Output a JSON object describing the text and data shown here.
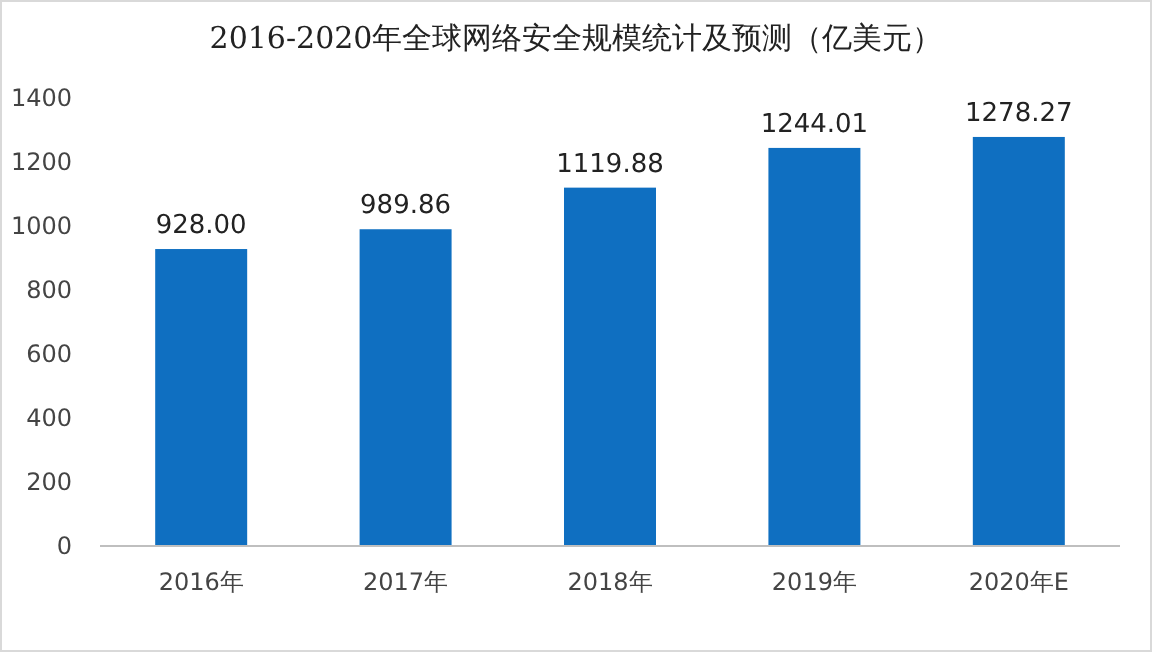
{
  "chart_data": {
    "type": "bar",
    "title": "2016-2020年全球网络安全规模统计及预测（亿美元）",
    "categories": [
      "2016年",
      "2017年",
      "2018年",
      "2019年",
      "2020年E"
    ],
    "values": [
      928.0,
      989.86,
      1119.88,
      1244.01,
      1278.27
    ],
    "value_labels": [
      "928.00",
      "989.86",
      "1119.88",
      "1244.01",
      "1278.27"
    ],
    "color": "#0f6fc1",
    "ylim": [
      0,
      1400
    ],
    "yticks": [
      0,
      200,
      400,
      600,
      800,
      1000,
      1200,
      1400
    ],
    "grid": false
  }
}
